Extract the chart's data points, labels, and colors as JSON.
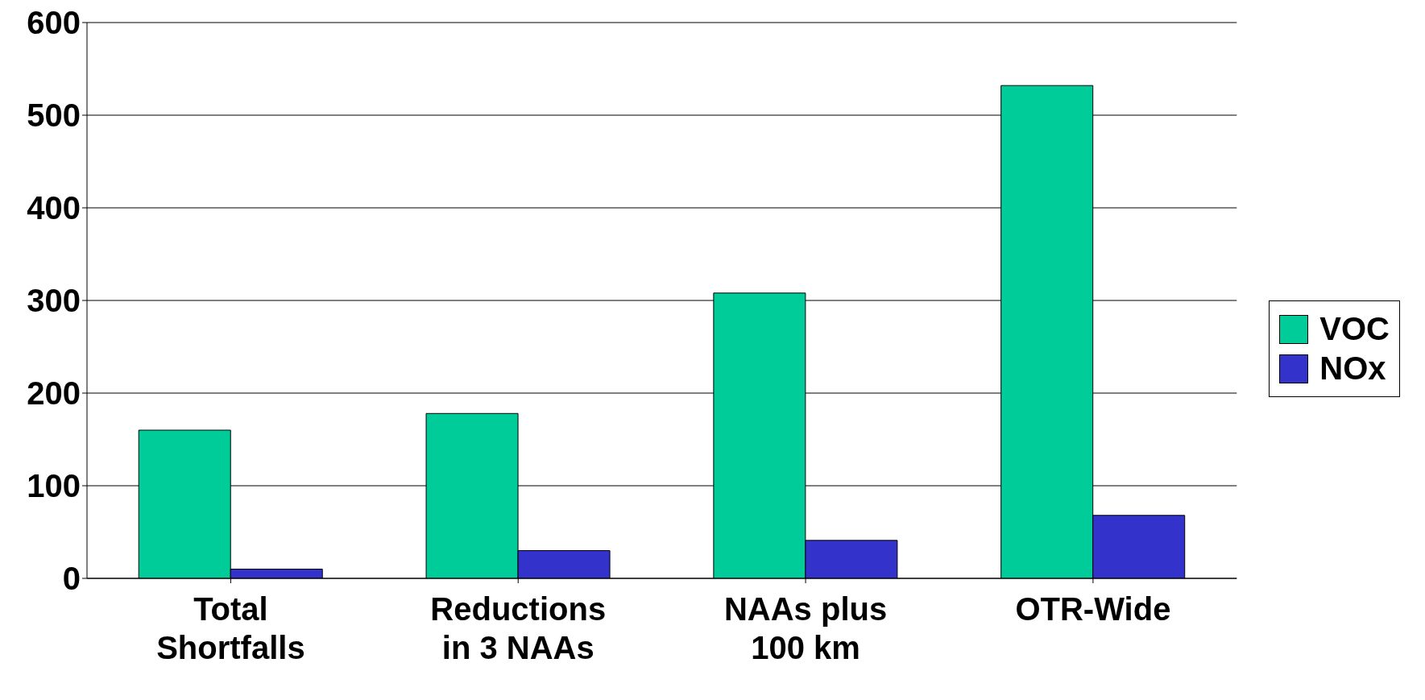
{
  "chart_data": {
    "type": "bar",
    "categories": [
      "Total Shortfalls",
      "Reductions in 3 NAAs",
      "NAAs plus 100 km",
      "OTR-Wide"
    ],
    "series": [
      {
        "name": "VOC",
        "color": "#00cc99",
        "values": [
          160,
          178,
          308,
          532
        ]
      },
      {
        "name": "NOx",
        "color": "#3333cc",
        "values": [
          10,
          30,
          41,
          68
        ]
      }
    ],
    "ylim": [
      0,
      600
    ],
    "yticks": [
      0,
      100,
      200,
      300,
      400,
      500,
      600
    ],
    "grid": "y",
    "legend": "right"
  }
}
